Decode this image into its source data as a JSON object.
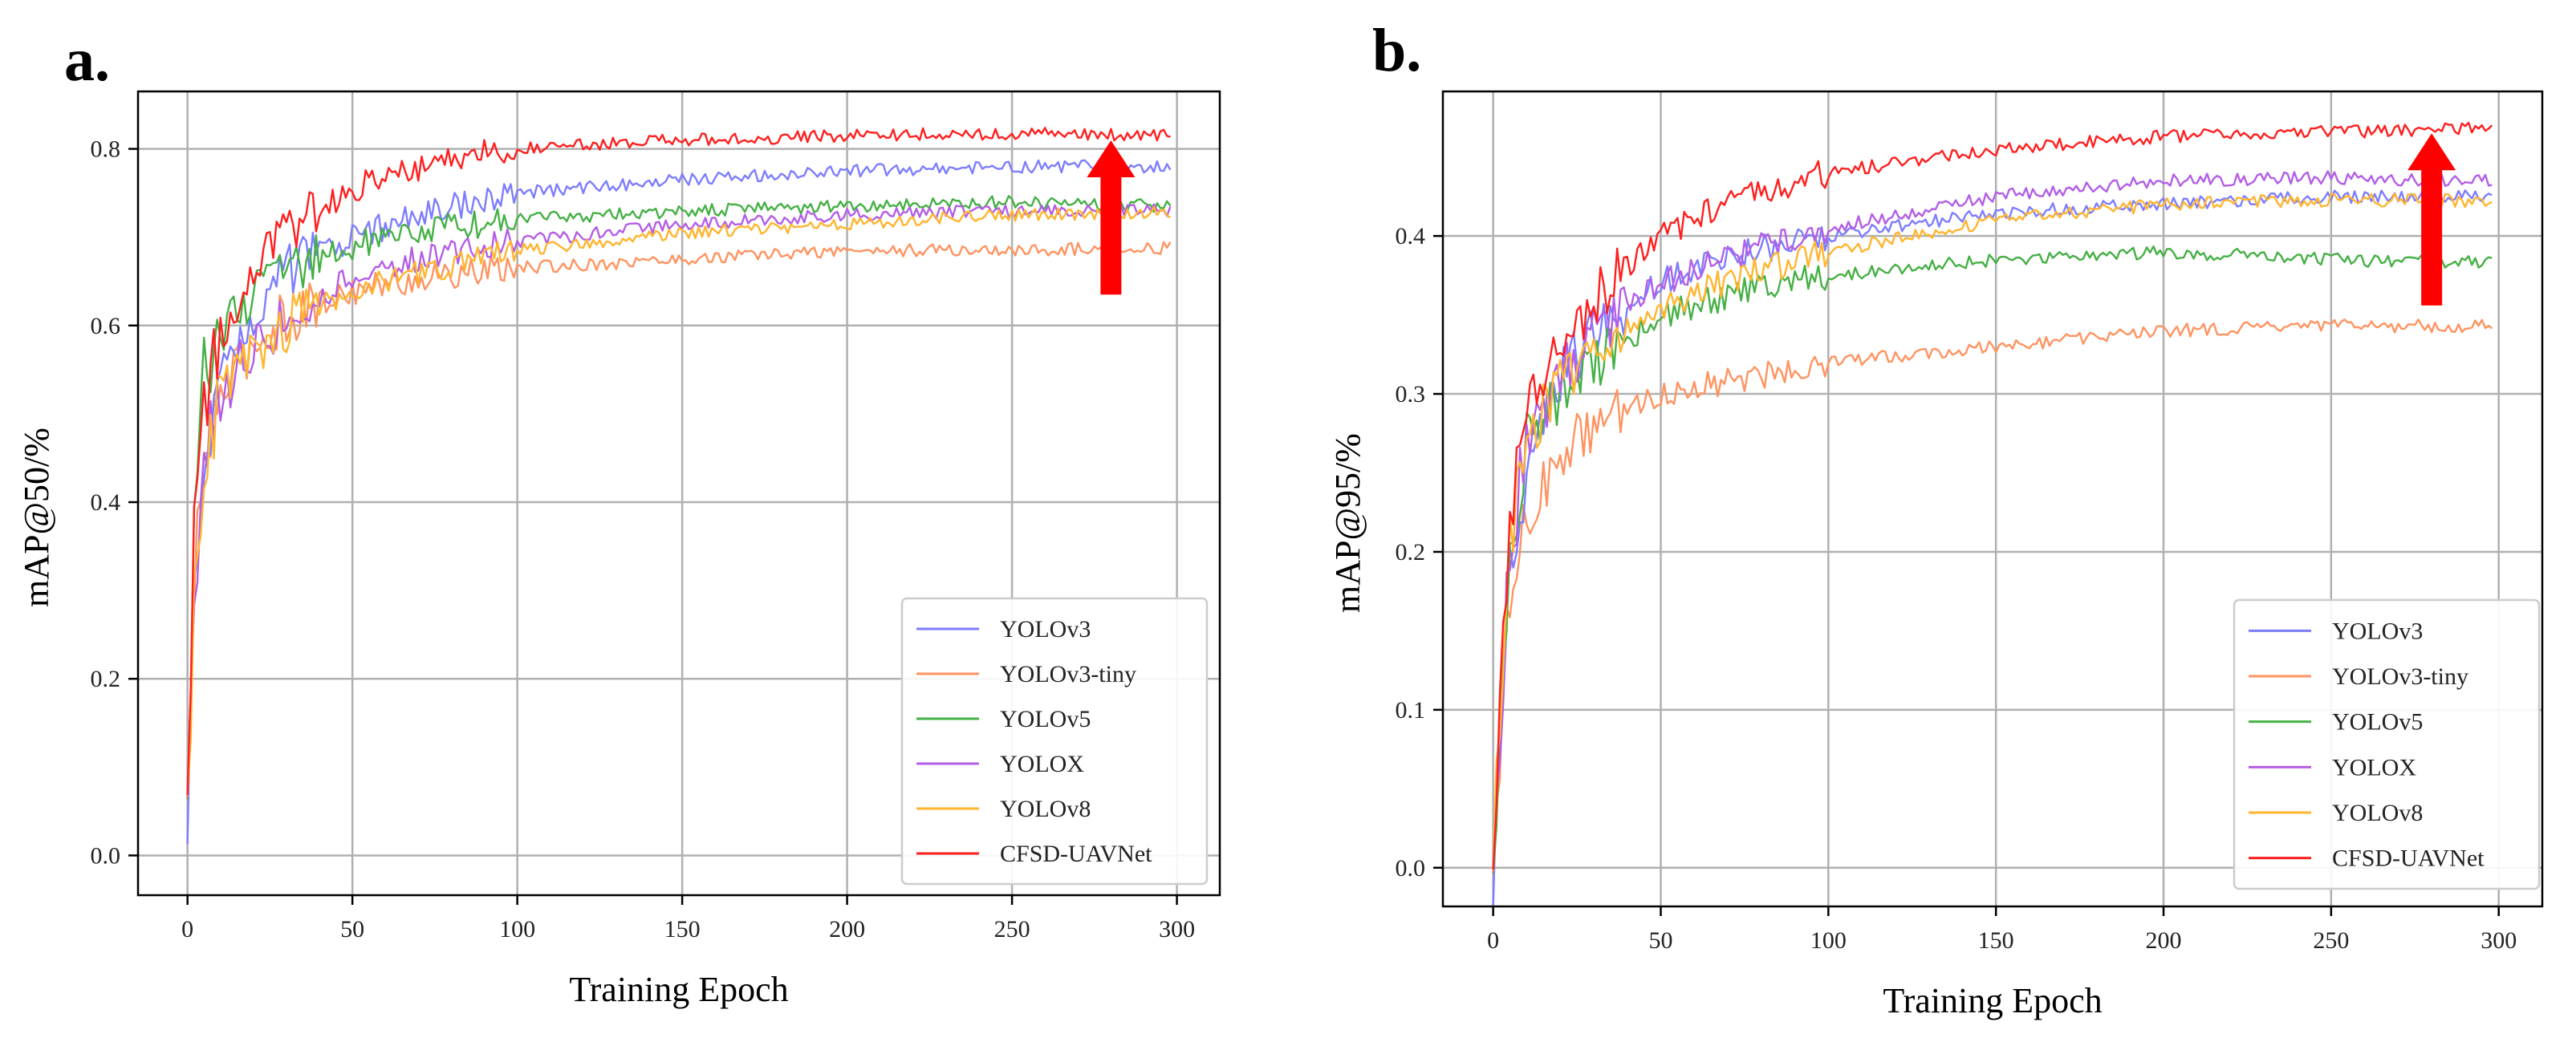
{
  "figure": {
    "series_colors": {
      "YOLOv3": "#7d7dff",
      "YOLOv3-tiny": "#ff9360",
      "YOLOv5": "#45b045",
      "YOLOX": "#b35ee6",
      "YOLOv8": "#ffb52e",
      "CFSD-UAVNet": "#ff1f1f"
    },
    "arrow_color": "#ff0000"
  },
  "chart_data": [
    {
      "panel": "a.",
      "type": "line",
      "xlabel": "Training Epoch",
      "ylabel": "mAP@50/%",
      "xlim": [
        -15,
        313
      ],
      "ylim": [
        -0.045,
        0.865
      ],
      "xticks": [
        0,
        50,
        100,
        150,
        200,
        250,
        300
      ],
      "yticks": [
        0.0,
        0.2,
        0.4,
        0.6,
        0.8
      ],
      "ytick_labels": [
        "0.0",
        "0.2",
        "0.4",
        "0.6",
        "0.8"
      ],
      "grid": true,
      "legend_position": "lower-right",
      "annotation": "upward red arrow near epoch 280",
      "series": [
        {
          "name": "YOLOv3",
          "x": [
            0,
            2,
            5,
            10,
            20,
            30,
            50,
            75,
            100,
            150,
            200,
            250,
            298
          ],
          "values": [
            0.0,
            0.3,
            0.45,
            0.55,
            0.62,
            0.66,
            0.7,
            0.73,
            0.75,
            0.765,
            0.775,
            0.78,
            0.78
          ]
        },
        {
          "name": "YOLOv3-tiny",
          "x": [
            0,
            2,
            5,
            10,
            20,
            30,
            50,
            75,
            100,
            150,
            200,
            250,
            298
          ],
          "values": [
            0.05,
            0.3,
            0.45,
            0.52,
            0.58,
            0.61,
            0.64,
            0.655,
            0.665,
            0.675,
            0.685,
            0.685,
            0.688
          ]
        },
        {
          "name": "YOLOv5",
          "x": [
            0,
            2,
            5,
            10,
            20,
            30,
            50,
            75,
            100,
            150,
            200,
            250,
            298
          ],
          "values": [
            0.05,
            0.35,
            0.55,
            0.6,
            0.63,
            0.66,
            0.69,
            0.71,
            0.72,
            0.73,
            0.735,
            0.74,
            0.735
          ]
        },
        {
          "name": "YOLOX",
          "x": [
            0,
            2,
            5,
            10,
            20,
            30,
            50,
            75,
            100,
            150,
            200,
            250,
            298
          ],
          "values": [
            0.05,
            0.3,
            0.45,
            0.52,
            0.58,
            0.61,
            0.655,
            0.68,
            0.695,
            0.715,
            0.725,
            0.73,
            0.73
          ]
        },
        {
          "name": "YOLOv8",
          "x": [
            0,
            2,
            5,
            10,
            20,
            30,
            50,
            75,
            100,
            150,
            200,
            250,
            298
          ],
          "values": [
            0.05,
            0.3,
            0.44,
            0.52,
            0.57,
            0.6,
            0.64,
            0.665,
            0.685,
            0.705,
            0.715,
            0.725,
            0.728
          ]
        },
        {
          "name": "CFSD-UAVNet",
          "x": [
            0,
            2,
            5,
            10,
            20,
            30,
            50,
            75,
            100,
            150,
            200,
            250,
            298
          ],
          "values": [
            0.05,
            0.35,
            0.5,
            0.6,
            0.66,
            0.7,
            0.755,
            0.785,
            0.8,
            0.81,
            0.815,
            0.818,
            0.815
          ]
        }
      ]
    },
    {
      "panel": "b.",
      "type": "line",
      "xlabel": "Training Epoch",
      "ylabel": "mAP@95/%",
      "xlim": [
        -15,
        313
      ],
      "ylim": [
        -0.0245,
        0.4915
      ],
      "xticks": [
        0,
        50,
        100,
        150,
        200,
        250,
        300
      ],
      "yticks": [
        0.0,
        0.1,
        0.2,
        0.3,
        0.4
      ],
      "ytick_labels": [
        "0.0",
        "0.1",
        "0.2",
        "0.3",
        "0.4"
      ],
      "grid": true,
      "legend_position": "lower-right",
      "annotation": "upward red arrow near epoch 280",
      "series": [
        {
          "name": "YOLOv3",
          "x": [
            0,
            2,
            5,
            10,
            20,
            30,
            50,
            75,
            100,
            150,
            200,
            250,
            298
          ],
          "values": [
            0.0,
            0.08,
            0.18,
            0.26,
            0.31,
            0.34,
            0.37,
            0.39,
            0.4,
            0.415,
            0.42,
            0.425,
            0.425
          ]
        },
        {
          "name": "YOLOv3-tiny",
          "x": [
            0,
            2,
            5,
            10,
            20,
            30,
            50,
            75,
            100,
            150,
            200,
            250,
            298
          ],
          "values": [
            0.02,
            0.08,
            0.17,
            0.22,
            0.26,
            0.28,
            0.3,
            0.31,
            0.32,
            0.33,
            0.34,
            0.343,
            0.343
          ]
        },
        {
          "name": "YOLOv5",
          "x": [
            0,
            2,
            5,
            10,
            20,
            30,
            50,
            75,
            100,
            150,
            200,
            250,
            298
          ],
          "values": [
            0.02,
            0.08,
            0.2,
            0.27,
            0.3,
            0.32,
            0.35,
            0.365,
            0.375,
            0.385,
            0.39,
            0.385,
            0.383
          ]
        },
        {
          "name": "YOLOX",
          "x": [
            0,
            2,
            5,
            10,
            20,
            30,
            50,
            75,
            100,
            150,
            200,
            250,
            298
          ],
          "values": [
            0.02,
            0.09,
            0.2,
            0.27,
            0.31,
            0.34,
            0.37,
            0.39,
            0.405,
            0.425,
            0.435,
            0.437,
            0.435
          ]
        },
        {
          "name": "YOLOv8",
          "x": [
            0,
            2,
            5,
            10,
            20,
            30,
            50,
            75,
            100,
            150,
            200,
            250,
            298
          ],
          "values": [
            0.02,
            0.09,
            0.2,
            0.27,
            0.31,
            0.33,
            0.355,
            0.375,
            0.39,
            0.41,
            0.42,
            0.423,
            0.422
          ]
        },
        {
          "name": "CFSD-UAVNet",
          "x": [
            0,
            2,
            5,
            10,
            20,
            30,
            50,
            75,
            100,
            150,
            200,
            250,
            298
          ],
          "values": [
            0.02,
            0.1,
            0.22,
            0.29,
            0.33,
            0.36,
            0.4,
            0.425,
            0.44,
            0.455,
            0.463,
            0.466,
            0.468
          ]
        }
      ]
    }
  ]
}
